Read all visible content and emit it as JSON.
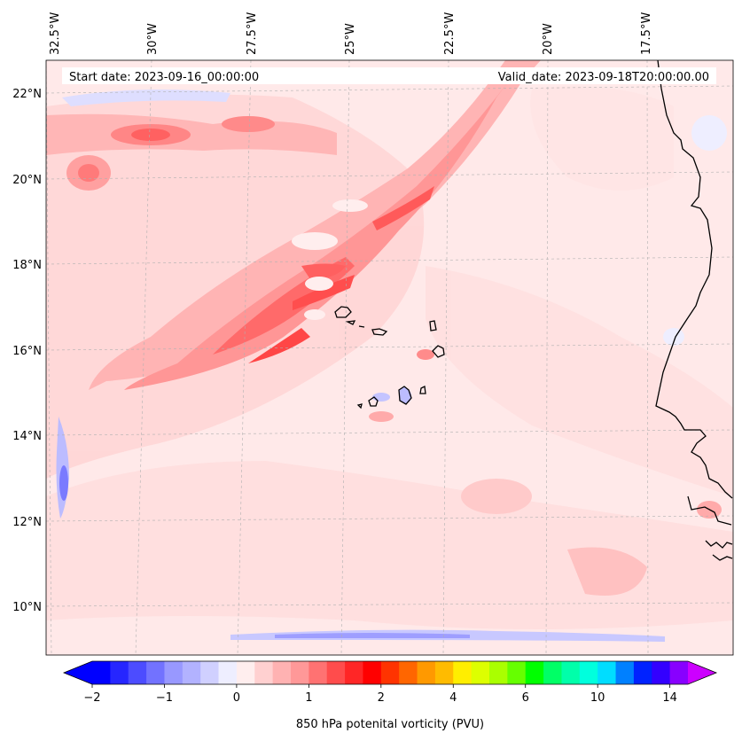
{
  "map": {
    "header": {
      "start": "Start date: 2023-09-16_00:00:00",
      "valid": "Valid_date: 2023-09-18T20:00:00.00"
    },
    "lon_labels": [
      "32.5°W",
      "30°W",
      "27.5°W",
      "25°W",
      "22.5°W",
      "20°W",
      "17.5°W"
    ],
    "lat_labels": [
      "22°N",
      "20°N",
      "18°N",
      "16°N",
      "14°N",
      "12°N",
      "10°N"
    ],
    "lon_range": [
      -32.5,
      -15.0
    ],
    "lat_range": [
      9.0,
      22.8
    ],
    "colors": {
      "land_outline": "#000000",
      "gridline": "#b0b0b0",
      "background": "#ffe8e8"
    }
  },
  "colorbar": {
    "label": "850 hPa potenital vorticity (PVU)",
    "tick_labels": [
      "−2",
      "−1",
      "0",
      "1",
      "2",
      "4",
      "6",
      "10",
      "14"
    ],
    "tick_values": [
      -2,
      -1,
      0,
      1,
      2,
      4,
      6,
      10,
      14
    ],
    "levels": [
      -2,
      -1.75,
      -1.5,
      -1.25,
      -1,
      -0.75,
      -0.5,
      -0.25,
      0,
      0.25,
      0.5,
      0.75,
      1,
      1.25,
      1.5,
      1.75,
      2,
      2.5,
      3,
      3.5,
      4,
      4.5,
      5,
      5.5,
      6,
      7,
      8,
      9,
      10,
      11,
      12,
      13,
      14,
      15
    ],
    "colors": [
      "#0000ff",
      "#2626ff",
      "#4c4cff",
      "#7272ff",
      "#9898ff",
      "#b2b2ff",
      "#d0d0ff",
      "#eeeeff",
      "#ffeeee",
      "#ffd0d0",
      "#ffb2b2",
      "#ff9898",
      "#ff7272",
      "#ff4c4c",
      "#ff2626",
      "#ff0000",
      "#ff3300",
      "#ff6600",
      "#ff9900",
      "#ffbb00",
      "#ffee00",
      "#ddff00",
      "#aaff00",
      "#66ff00",
      "#00ff00",
      "#00ff66",
      "#00ffaa",
      "#00ffdd",
      "#00ddff",
      "#0080ff",
      "#0022ff",
      "#3300ff",
      "#8800ff"
    ],
    "under_color": "#0000ff",
    "over_color": "#cc00ff"
  }
}
